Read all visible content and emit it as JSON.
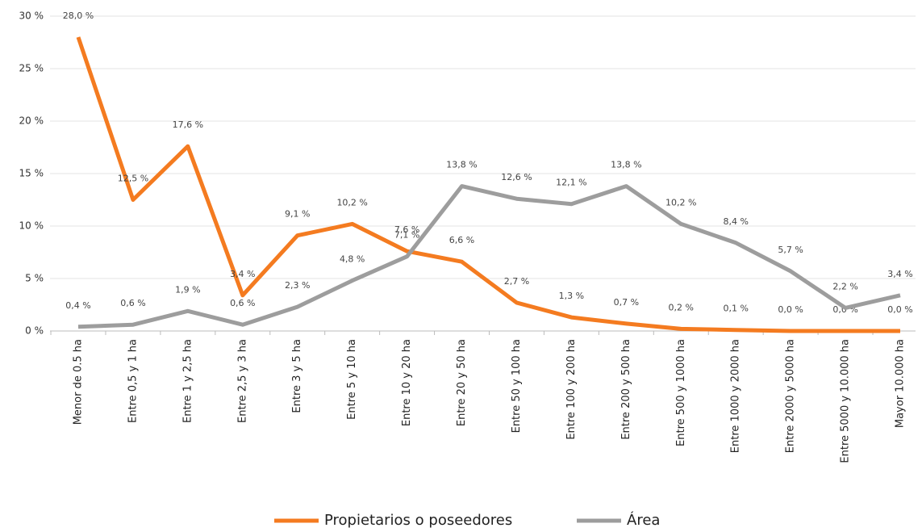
{
  "chart_data": {
    "type": "line",
    "categories": [
      "Menor de 0.5 ha",
      "Entre 0,5 y 1 ha",
      "Entre 1 y 2,5 ha",
      "Entre 2,5 y 3 ha",
      "Entre 3 y 5 ha",
      "Entre 5 y 10 ha",
      "Entre 10 y 20 ha",
      "Entre 20 y 50 ha",
      "Entre 50 y 100 ha",
      "Entre 100 y 200 ha",
      "Entre 200 y 500 ha",
      "Entre 500 y 1000 ha",
      "Entre 1000 y 2000 ha",
      "Entre 2000 y 5000 ha",
      "Entre 5000 y 10.000 ha",
      "Mayor 10.000 ha"
    ],
    "series": [
      {
        "name": "Propietarios o poseedores",
        "color": "#f47b20",
        "values": [
          28.0,
          12.5,
          17.6,
          3.4,
          9.1,
          10.2,
          7.6,
          6.6,
          2.7,
          1.3,
          0.7,
          0.2,
          0.1,
          0.0,
          0.0,
          0.0
        ],
        "value_labels": [
          "28,0 %",
          "12,5 %",
          "17,6 %",
          "3,4 %",
          "9,1 %",
          "10,2 %",
          "7,6 %",
          "6,6 %",
          "2,7 %",
          "1,3 %",
          "0,7 %",
          "0,2 %",
          "0,1 %",
          "0,0 %",
          "0,0 %",
          "0,0 %"
        ]
      },
      {
        "name": "Área",
        "color": "#9d9d9d",
        "values": [
          0.4,
          0.6,
          1.9,
          0.6,
          2.3,
          4.8,
          7.1,
          13.8,
          12.6,
          12.1,
          13.8,
          10.2,
          8.4,
          5.7,
          2.2,
          3.4
        ],
        "value_labels": [
          "0,4 %",
          "0,6 %",
          "1,9 %",
          "0,6 %",
          "2,3 %",
          "4,8 %",
          "7,1 %",
          "13,8 %",
          "12,6 %",
          "12,1 %",
          "13,8 %",
          "10,2 %",
          "8,4 %",
          "5,7 %",
          "2,2 %",
          "3,4 %"
        ]
      }
    ],
    "ylim": [
      0,
      30
    ],
    "yticks": [
      {
        "value": 0,
        "label": "0 %"
      },
      {
        "value": 5,
        "label": "5 %"
      },
      {
        "value": 10,
        "label": "10 %"
      },
      {
        "value": 15,
        "label": "15 %"
      },
      {
        "value": 20,
        "label": "20 %"
      },
      {
        "value": 25,
        "label": "25 %"
      },
      {
        "value": 30,
        "label": "30 %"
      }
    ],
    "grid": true
  }
}
